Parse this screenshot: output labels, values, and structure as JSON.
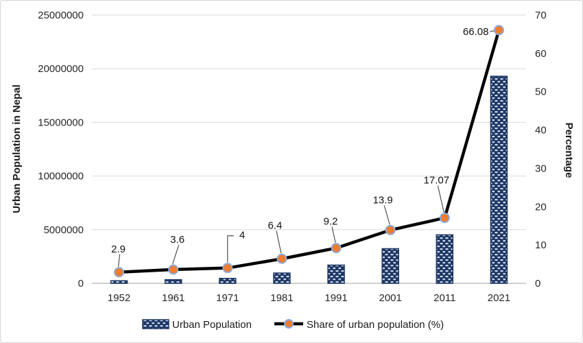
{
  "chart_data": {
    "type": "combo-bar-line",
    "categories": [
      "1952",
      "1961",
      "1971",
      "1981",
      "1991",
      "2001",
      "2011",
      "2021"
    ],
    "series": [
      {
        "name": "Urban Population",
        "type": "bar",
        "axis": "left",
        "values": [
          240000,
          340000,
          460000,
          960000,
          1700000,
          3230000,
          4520000,
          19300000
        ]
      },
      {
        "name": "Share of urban population (%)",
        "type": "line",
        "axis": "right",
        "values": [
          2.9,
          3.6,
          4,
          6.4,
          9.2,
          13.9,
          17.07,
          66.08
        ],
        "point_labels": [
          "2.9",
          "3.6",
          "4",
          "6.4",
          "9.2",
          "13.9",
          "17.07",
          "66.08"
        ]
      }
    ],
    "left_axis": {
      "label": "Urban Population in Nepal",
      "min": 0,
      "max": 25000000,
      "tick_values": [
        25000000,
        20000000,
        15000000,
        10000000,
        5000000,
        0
      ],
      "tick_labels": [
        "25000000",
        "20000000",
        "15000000",
        "10000000",
        "5000000",
        "0"
      ]
    },
    "right_axis": {
      "label": "Percentage",
      "min": 0,
      "max": 70,
      "tick_values": [
        70,
        60,
        50,
        40,
        30,
        20,
        10,
        0
      ],
      "tick_labels": [
        "70",
        "60",
        "50",
        "40",
        "30",
        "20",
        "10",
        "0"
      ]
    },
    "grid": true,
    "legend_position": "bottom",
    "colors": {
      "bar_fill": "#1F3864",
      "bar_pattern_dash": "#CDD9EE",
      "bar_border": "#1F3864",
      "line": "#000000",
      "marker_fill": "#ED7D31",
      "marker_ring": "#8EAADB",
      "gridline": "#D9D9D9",
      "axis_line": "#BFBFBF",
      "leader_line": "#404040",
      "text": "#262626"
    }
  },
  "legend": {
    "items": [
      {
        "label": "Urban Population",
        "swatch": "bar-pattern-swatch"
      },
      {
        "label": "Share of urban population (%)",
        "swatch": "line-marker-swatch"
      }
    ]
  }
}
